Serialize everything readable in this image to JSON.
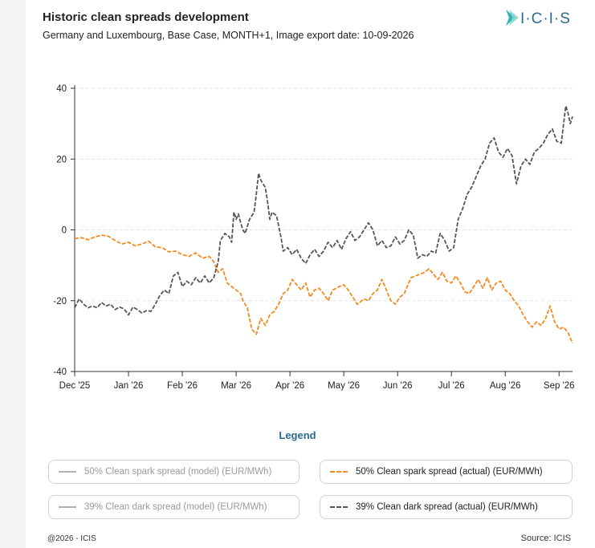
{
  "header": {
    "title": "Historic clean spreads development",
    "subtitle": "Germany and Luxembourg, Base Case, MONTH+1, Image export date: 10-09-2026",
    "logo_text": "I·C·I·S"
  },
  "legend": {
    "title": "Legend",
    "items": [
      {
        "label": "50% Clean spark spread (model) (EUR/MWh)",
        "state": "off",
        "color": "#b0b0b0",
        "dash": "solid"
      },
      {
        "label": "50% Clean spark spread (actual) (EUR/MWh)",
        "state": "on",
        "color": "#f58a1f",
        "dash": "dashed"
      },
      {
        "label": "39% Clean dark spread (model) (EUR/MWh)",
        "state": "off",
        "color": "#b0b0b0",
        "dash": "solid"
      },
      {
        "label": "39% Clean dark spread (actual) (EUR/MWh)",
        "state": "on",
        "color": "#555555",
        "dash": "dashed"
      }
    ]
  },
  "footer": {
    "copyright": "@2026 - ICIS",
    "source": "Source: ICIS"
  },
  "chart_data": {
    "type": "line",
    "ylim": [
      -40,
      40
    ],
    "yticks": [
      40,
      20,
      0,
      -20,
      -40
    ],
    "x_categories": [
      "Dec '25",
      "Jan '26",
      "Feb '26",
      "Mar '26",
      "Apr '26",
      "May '26",
      "Jun '26",
      "Jul '26",
      "Aug '26",
      "Sep '26"
    ],
    "grid": "horizontal",
    "series": [
      {
        "name": "50% Clean spark spread (actual) (EUR/MWh)",
        "color": "#f58a1f",
        "points": [
          [
            0.0,
            -2.5
          ],
          [
            0.3,
            -2.2
          ],
          [
            0.6,
            -2.8
          ],
          [
            0.9,
            -2.0
          ],
          [
            1.2,
            -1.5
          ],
          [
            1.5,
            -1.8
          ],
          [
            1.8,
            -3.0
          ],
          [
            2.1,
            -4.0
          ],
          [
            2.4,
            -3.5
          ],
          [
            2.7,
            -4.5
          ],
          [
            3.0,
            -4.0
          ],
          [
            3.3,
            -3.2
          ],
          [
            3.6,
            -4.8
          ],
          [
            3.9,
            -5.0
          ],
          [
            4.2,
            -6.2
          ],
          [
            4.5,
            -6.0
          ],
          [
            4.8,
            -7.0
          ],
          [
            5.1,
            -7.5
          ],
          [
            5.4,
            -6.5
          ],
          [
            5.7,
            -8.0
          ],
          [
            6.0,
            -7.5
          ],
          [
            6.2,
            -9.0
          ],
          [
            6.4,
            -12.0
          ],
          [
            6.6,
            -11.0
          ],
          [
            6.8,
            -15.0
          ],
          [
            7.0,
            -16.0
          ],
          [
            7.2,
            -17.0
          ],
          [
            7.4,
            -18.0
          ],
          [
            7.5,
            -20.0
          ],
          [
            7.7,
            -22.0
          ],
          [
            7.9,
            -28.0
          ],
          [
            8.1,
            -29.5
          ],
          [
            8.3,
            -25.0
          ],
          [
            8.5,
            -27.0
          ],
          [
            8.7,
            -24.0
          ],
          [
            8.9,
            -23.0
          ],
          [
            9.1,
            -21.0
          ],
          [
            9.3,
            -18.0
          ],
          [
            9.5,
            -17.0
          ],
          [
            9.7,
            -14.0
          ],
          [
            9.9,
            -15.5
          ],
          [
            10.1,
            -17.0
          ],
          [
            10.3,
            -15.0
          ],
          [
            10.5,
            -19.0
          ],
          [
            10.7,
            -17.0
          ],
          [
            10.9,
            -16.5
          ],
          [
            11.1,
            -18.0
          ],
          [
            11.3,
            -20.0
          ],
          [
            11.5,
            -17.0
          ],
          [
            11.8,
            -16.0
          ],
          [
            12.0,
            -15.5
          ],
          [
            12.2,
            -17.0
          ],
          [
            12.4,
            -19.0
          ],
          [
            12.6,
            -21.0
          ],
          [
            12.9,
            -19.5
          ],
          [
            13.1,
            -20.0
          ],
          [
            13.3,
            -18.0
          ],
          [
            13.5,
            -17.0
          ],
          [
            13.7,
            -14.0
          ],
          [
            13.9,
            -17.0
          ],
          [
            14.1,
            -20.0
          ],
          [
            14.3,
            -21.0
          ],
          [
            14.5,
            -19.0
          ],
          [
            14.7,
            -18.0
          ],
          [
            15.0,
            -13.5
          ],
          [
            15.2,
            -13.0
          ],
          [
            15.4,
            -12.5
          ],
          [
            15.6,
            -12.0
          ],
          [
            15.8,
            -11.0
          ],
          [
            16.0,
            -12.5
          ],
          [
            16.2,
            -14.0
          ],
          [
            16.4,
            -12.0
          ],
          [
            16.6,
            -14.5
          ],
          [
            16.8,
            -15.0
          ],
          [
            17.0,
            -13.0
          ],
          [
            17.2,
            -15.0
          ],
          [
            17.4,
            -17.5
          ],
          [
            17.6,
            -18.0
          ],
          [
            17.8,
            -16.0
          ],
          [
            18.0,
            -14.0
          ],
          [
            18.2,
            -16.5
          ],
          [
            18.4,
            -13.5
          ],
          [
            18.6,
            -17.0
          ],
          [
            18.8,
            -15.0
          ],
          [
            19.0,
            -14.5
          ],
          [
            19.2,
            -17.0
          ],
          [
            19.4,
            -18.0
          ],
          [
            19.6,
            -20.0
          ],
          [
            19.8,
            -21.5
          ],
          [
            20.0,
            -24.0
          ],
          [
            20.2,
            -26.0
          ],
          [
            20.4,
            -27.5
          ],
          [
            20.6,
            -26.0
          ],
          [
            20.8,
            -27.0
          ],
          [
            21.0,
            -25.0
          ],
          [
            21.2,
            -21.5
          ],
          [
            21.4,
            -26.0
          ],
          [
            21.6,
            -28.0
          ],
          [
            21.8,
            -27.5
          ],
          [
            22.0,
            -29.0
          ],
          [
            22.2,
            -32.0
          ]
        ]
      },
      {
        "name": "39% Clean dark spread (actual) (EUR/MWh)",
        "color": "#555555",
        "points": [
          [
            0.0,
            -22.0
          ],
          [
            0.2,
            -19.5
          ],
          [
            0.4,
            -21.0
          ],
          [
            0.6,
            -22.0
          ],
          [
            0.8,
            -21.5
          ],
          [
            1.0,
            -22.0
          ],
          [
            1.2,
            -20.5
          ],
          [
            1.4,
            -21.5
          ],
          [
            1.6,
            -21.0
          ],
          [
            1.8,
            -22.5
          ],
          [
            2.0,
            -21.8
          ],
          [
            2.2,
            -22.3
          ],
          [
            2.4,
            -24.0
          ],
          [
            2.6,
            -21.8
          ],
          [
            2.8,
            -22.5
          ],
          [
            3.0,
            -23.5
          ],
          [
            3.2,
            -22.8
          ],
          [
            3.4,
            -23.0
          ],
          [
            3.6,
            -21.0
          ],
          [
            3.8,
            -18.5
          ],
          [
            4.0,
            -17.0
          ],
          [
            4.2,
            -18.0
          ],
          [
            4.4,
            -13.0
          ],
          [
            4.6,
            -12.0
          ],
          [
            4.8,
            -16.0
          ],
          [
            5.0,
            -14.5
          ],
          [
            5.2,
            -15.5
          ],
          [
            5.4,
            -13.5
          ],
          [
            5.6,
            -15.0
          ],
          [
            5.8,
            -13.0
          ],
          [
            6.0,
            -15.0
          ],
          [
            6.2,
            -13.5
          ],
          [
            6.4,
            -9.0
          ],
          [
            6.5,
            -3.0
          ],
          [
            6.7,
            -1.0
          ],
          [
            6.9,
            -2.0
          ],
          [
            7.0,
            -3.5
          ],
          [
            7.1,
            5.0
          ],
          [
            7.2,
            3.0
          ],
          [
            7.3,
            4.5
          ],
          [
            7.4,
            2.0
          ],
          [
            7.5,
            0.0
          ],
          [
            7.6,
            -1.0
          ],
          [
            7.8,
            3.0
          ],
          [
            8.0,
            5.0
          ],
          [
            8.1,
            10.0
          ],
          [
            8.2,
            16.0
          ],
          [
            8.3,
            14.0
          ],
          [
            8.5,
            12.0
          ],
          [
            8.6,
            8.0
          ],
          [
            8.7,
            3.0
          ],
          [
            8.8,
            5.0
          ],
          [
            9.0,
            4.0
          ],
          [
            9.2,
            -2.0
          ],
          [
            9.3,
            -6.0
          ],
          [
            9.5,
            -5.0
          ],
          [
            9.7,
            -7.0
          ],
          [
            9.9,
            -5.5
          ],
          [
            10.1,
            -8.0
          ],
          [
            10.3,
            -9.5
          ],
          [
            10.5,
            -7.0
          ],
          [
            10.7,
            -5.5
          ],
          [
            10.9,
            -7.5
          ],
          [
            11.1,
            -6.0
          ],
          [
            11.3,
            -3.5
          ],
          [
            11.5,
            -5.0
          ],
          [
            11.7,
            -3.0
          ],
          [
            11.9,
            -5.5
          ],
          [
            12.1,
            -2.5
          ],
          [
            12.3,
            -0.5
          ],
          [
            12.5,
            -3.0
          ],
          [
            12.7,
            -2.0
          ],
          [
            12.9,
            0.0
          ],
          [
            13.1,
            2.0
          ],
          [
            13.3,
            0.0
          ],
          [
            13.5,
            -4.5
          ],
          [
            13.7,
            -3.0
          ],
          [
            13.9,
            -5.0
          ],
          [
            14.1,
            -4.5
          ],
          [
            14.3,
            -2.0
          ],
          [
            14.5,
            -4.0
          ],
          [
            14.7,
            -3.0
          ],
          [
            14.9,
            0.0
          ],
          [
            15.1,
            -1.5
          ],
          [
            15.3,
            -8.0
          ],
          [
            15.5,
            -7.0
          ],
          [
            15.7,
            -7.5
          ],
          [
            15.9,
            -6.0
          ],
          [
            16.1,
            -6.5
          ],
          [
            16.3,
            -1.0
          ],
          [
            16.5,
            -3.0
          ],
          [
            16.7,
            -6.0
          ],
          [
            16.9,
            -5.0
          ],
          [
            17.1,
            3.0
          ],
          [
            17.3,
            6.0
          ],
          [
            17.5,
            10.0
          ],
          [
            17.7,
            12.0
          ],
          [
            17.9,
            15.0
          ],
          [
            18.1,
            18.0
          ],
          [
            18.3,
            20.0
          ],
          [
            18.5,
            24.5
          ],
          [
            18.7,
            26.0
          ],
          [
            18.9,
            22.0
          ],
          [
            19.1,
            20.5
          ],
          [
            19.3,
            23.0
          ],
          [
            19.5,
            21.0
          ],
          [
            19.7,
            13.0
          ],
          [
            19.9,
            18.0
          ],
          [
            20.1,
            20.0
          ],
          [
            20.3,
            18.5
          ],
          [
            20.5,
            22.0
          ],
          [
            20.7,
            23.0
          ],
          [
            20.9,
            24.5
          ],
          [
            21.1,
            27.0
          ],
          [
            21.3,
            28.5
          ],
          [
            21.5,
            25.0
          ],
          [
            21.7,
            24.5
          ],
          [
            21.9,
            35.0
          ],
          [
            22.0,
            33.0
          ],
          [
            22.1,
            30.0
          ],
          [
            22.2,
            32.0
          ]
        ]
      }
    ]
  }
}
